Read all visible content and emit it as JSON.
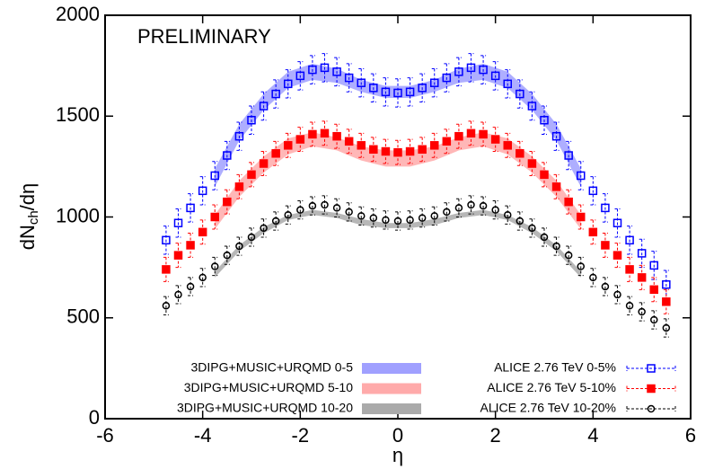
{
  "chart_data": {
    "type": "errorbar",
    "annotation": "PRELIMINARY",
    "xlabel": "η",
    "ylabel_parts": [
      "dN",
      "ch",
      "/dη"
    ],
    "xlim": [
      -6,
      6
    ],
    "xticks": [
      -6,
      -4,
      -2,
      0,
      2,
      4,
      6
    ],
    "ylim": [
      0,
      2000
    ],
    "yticks": [
      0,
      500,
      1000,
      1500,
      2000
    ],
    "x": [
      -4.75,
      -4.5,
      -4.25,
      -4,
      -3.75,
      -3.5,
      -3.25,
      -3,
      -2.75,
      -2.5,
      -2.25,
      -2,
      -1.75,
      -1.5,
      -1.25,
      -1,
      -0.75,
      -0.5,
      -0.25,
      0,
      0.25,
      0.5,
      0.75,
      1,
      1.25,
      1.5,
      1.75,
      2,
      2.25,
      2.5,
      2.75,
      3,
      3.25,
      3.5,
      3.75,
      4,
      4.25,
      4.5,
      4.75,
      5,
      5.25,
      5.5
    ],
    "bands": [
      {
        "name": "3DIPG+MUSIC+URQMD 0-5",
        "color": "#a0a0ff",
        "x": [
          -3.75,
          -3.25,
          -2.75,
          -2.25,
          -1.75,
          -1.25,
          -0.75,
          -0.25,
          0.25,
          0.75,
          1.25,
          1.75,
          2.25,
          2.75,
          3.25,
          3.75
        ],
        "lower": [
          1150,
          1380,
          1530,
          1640,
          1680,
          1665,
          1620,
          1590,
          1590,
          1620,
          1665,
          1680,
          1640,
          1530,
          1380,
          1150
        ],
        "upper": [
          1240,
          1460,
          1610,
          1720,
          1760,
          1735,
          1680,
          1650,
          1650,
          1680,
          1735,
          1760,
          1720,
          1610,
          1460,
          1240
        ]
      },
      {
        "name": "3DIPG+MUSIC+URQMD 5-10",
        "color": "#ffaaaa",
        "x": [
          -3.75,
          -3.25,
          -2.75,
          -2.25,
          -1.75,
          -1.25,
          -0.75,
          -0.25,
          0.25,
          0.75,
          1.25,
          1.75,
          2.25,
          2.75,
          3.25,
          3.75
        ],
        "lower": [
          940,
          1100,
          1220,
          1310,
          1350,
          1330,
          1280,
          1250,
          1250,
          1280,
          1330,
          1350,
          1310,
          1220,
          1100,
          940
        ],
        "upper": [
          1010,
          1180,
          1300,
          1390,
          1420,
          1395,
          1350,
          1330,
          1330,
          1350,
          1395,
          1420,
          1390,
          1300,
          1180,
          1010
        ]
      },
      {
        "name": "3DIPG+MUSIC+URQMD 10-20",
        "color": "#aaaaaa",
        "x": [
          -3.75,
          -3.25,
          -2.75,
          -2.25,
          -1.75,
          -1.25,
          -0.75,
          -0.25,
          0.25,
          0.75,
          1.25,
          1.75,
          2.25,
          2.75,
          3.25,
          3.75
        ],
        "lower": [
          700,
          830,
          920,
          985,
          1010,
          995,
          960,
          945,
          945,
          960,
          995,
          1010,
          985,
          920,
          830,
          700
        ],
        "upper": [
          730,
          860,
          950,
          1010,
          1035,
          1020,
          990,
          970,
          970,
          990,
          1020,
          1035,
          1010,
          950,
          860,
          730
        ]
      }
    ],
    "series": [
      {
        "name": "ALICE 2.76 TeV 0-5%",
        "color": "#0000ff",
        "marker": "open-square",
        "error": 70,
        "values": [
          885,
          970,
          1045,
          1130,
          1205,
          1305,
          1400,
          1480,
          1550,
          1610,
          1660,
          1700,
          1730,
          1740,
          1720,
          1690,
          1665,
          1640,
          1620,
          1615,
          1620,
          1640,
          1665,
          1690,
          1720,
          1740,
          1730,
          1700,
          1660,
          1610,
          1550,
          1480,
          1400,
          1305,
          1205,
          1130,
          1045,
          970,
          885,
          820,
          760,
          665
        ]
      },
      {
        "name": "ALICE 2.76 TeV 5-10%",
        "color": "#ff0000",
        "marker": "filled-square",
        "error": 60,
        "values": [
          740,
          810,
          860,
          925,
          1000,
          1075,
          1150,
          1210,
          1265,
          1315,
          1355,
          1385,
          1410,
          1415,
          1400,
          1375,
          1355,
          1335,
          1325,
          1320,
          1325,
          1335,
          1355,
          1375,
          1400,
          1415,
          1410,
          1385,
          1355,
          1315,
          1265,
          1210,
          1150,
          1075,
          1000,
          925,
          860,
          810,
          740,
          700,
          640,
          580
        ]
      },
      {
        "name": "ALICE 2.76 TeV 10-20%",
        "color": "#000000",
        "marker": "open-circle",
        "error": 45,
        "values": [
          560,
          615,
          655,
          700,
          755,
          810,
          855,
          900,
          945,
          980,
          1010,
          1035,
          1055,
          1060,
          1045,
          1025,
          1005,
          995,
          985,
          980,
          985,
          995,
          1005,
          1025,
          1045,
          1060,
          1055,
          1035,
          1010,
          980,
          945,
          900,
          855,
          810,
          755,
          700,
          655,
          615,
          560,
          530,
          490,
          450
        ]
      }
    ]
  }
}
